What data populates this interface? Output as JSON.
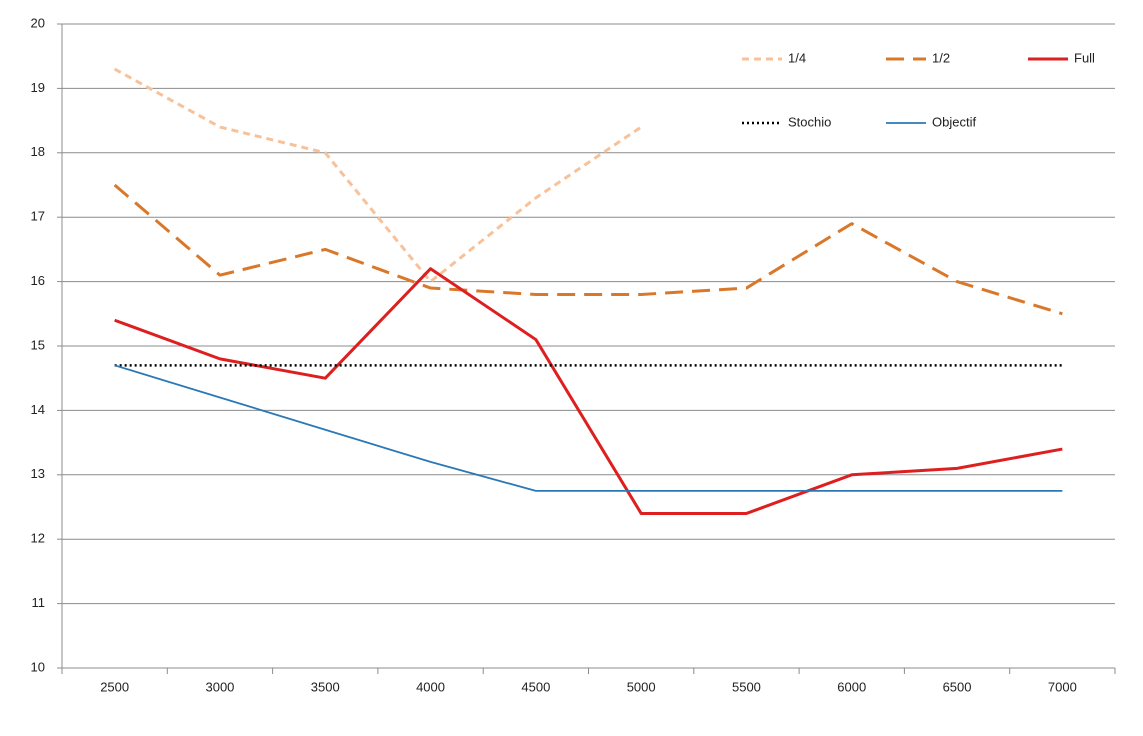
{
  "chart_data": {
    "type": "line",
    "categories": [
      2500,
      3000,
      3500,
      4000,
      4500,
      5000,
      5500,
      6000,
      6500,
      7000
    ],
    "series": [
      {
        "name": "1/4",
        "color": "#f7c29a",
        "dash": "dash",
        "values": [
          19.3,
          18.4,
          18.0,
          16.0,
          17.3,
          18.4,
          null,
          null,
          null,
          null
        ]
      },
      {
        "name": "1/2",
        "color": "#d9782a",
        "dash": "longdash",
        "values": [
          17.5,
          16.1,
          16.5,
          15.9,
          15.8,
          15.8,
          15.9,
          16.9,
          16.0,
          15.5
        ]
      },
      {
        "name": "Full",
        "color": "#de1f1f",
        "dash": "solid",
        "values": [
          15.4,
          14.8,
          14.5,
          16.2,
          15.1,
          12.4,
          12.4,
          13.0,
          13.1,
          13.4
        ]
      },
      {
        "name": "Stochio",
        "color": "#000000",
        "dash": "dot",
        "values": [
          14.7,
          14.7,
          14.7,
          14.7,
          14.7,
          14.7,
          14.7,
          14.7,
          14.7,
          14.7
        ]
      },
      {
        "name": "Objectif",
        "color": "#2a78b6",
        "dash": "thin",
        "values": [
          14.7,
          14.2,
          13.7,
          13.2,
          12.75,
          12.75,
          12.75,
          12.75,
          12.75,
          12.75
        ]
      }
    ],
    "ylim": [
      10,
      20
    ],
    "yticks": [
      10,
      11,
      12,
      13,
      14,
      15,
      16,
      17,
      18,
      19,
      20
    ],
    "grid": true,
    "legend": "top-right"
  }
}
